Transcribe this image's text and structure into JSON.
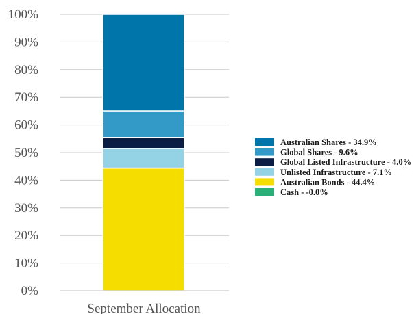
{
  "chart_data": {
    "type": "bar",
    "stacked": true,
    "categories": [
      "September Allocation"
    ],
    "series": [
      {
        "name": "Australian Bonds - 44.4%",
        "value": 44.4,
        "color": "#f5dd00"
      },
      {
        "name": "Unlisted Infrastructure - 7.1%",
        "value": 7.1,
        "color": "#94d3e6"
      },
      {
        "name": "Global Listed Infrastructure - 4.0%",
        "value": 4.0,
        "color": "#0b1d45"
      },
      {
        "name": "Global Shares - 9.6%",
        "value": 9.6,
        "color": "#3399c7"
      },
      {
        "name": "Australian Shares - 34.9%",
        "value": 34.9,
        "color": "#0075aa"
      },
      {
        "name": "Cash - -0.0%",
        "value": 0.0,
        "color": "#2bb07a"
      }
    ],
    "legend_order": [
      4,
      3,
      2,
      1,
      0,
      5
    ],
    "yticks": [
      "0%",
      "10%",
      "20%",
      "30%",
      "40%",
      "50%",
      "60%",
      "70%",
      "80%",
      "90%",
      "100%"
    ],
    "ylim": [
      0,
      100
    ],
    "grid": true,
    "legend_position": "right"
  }
}
